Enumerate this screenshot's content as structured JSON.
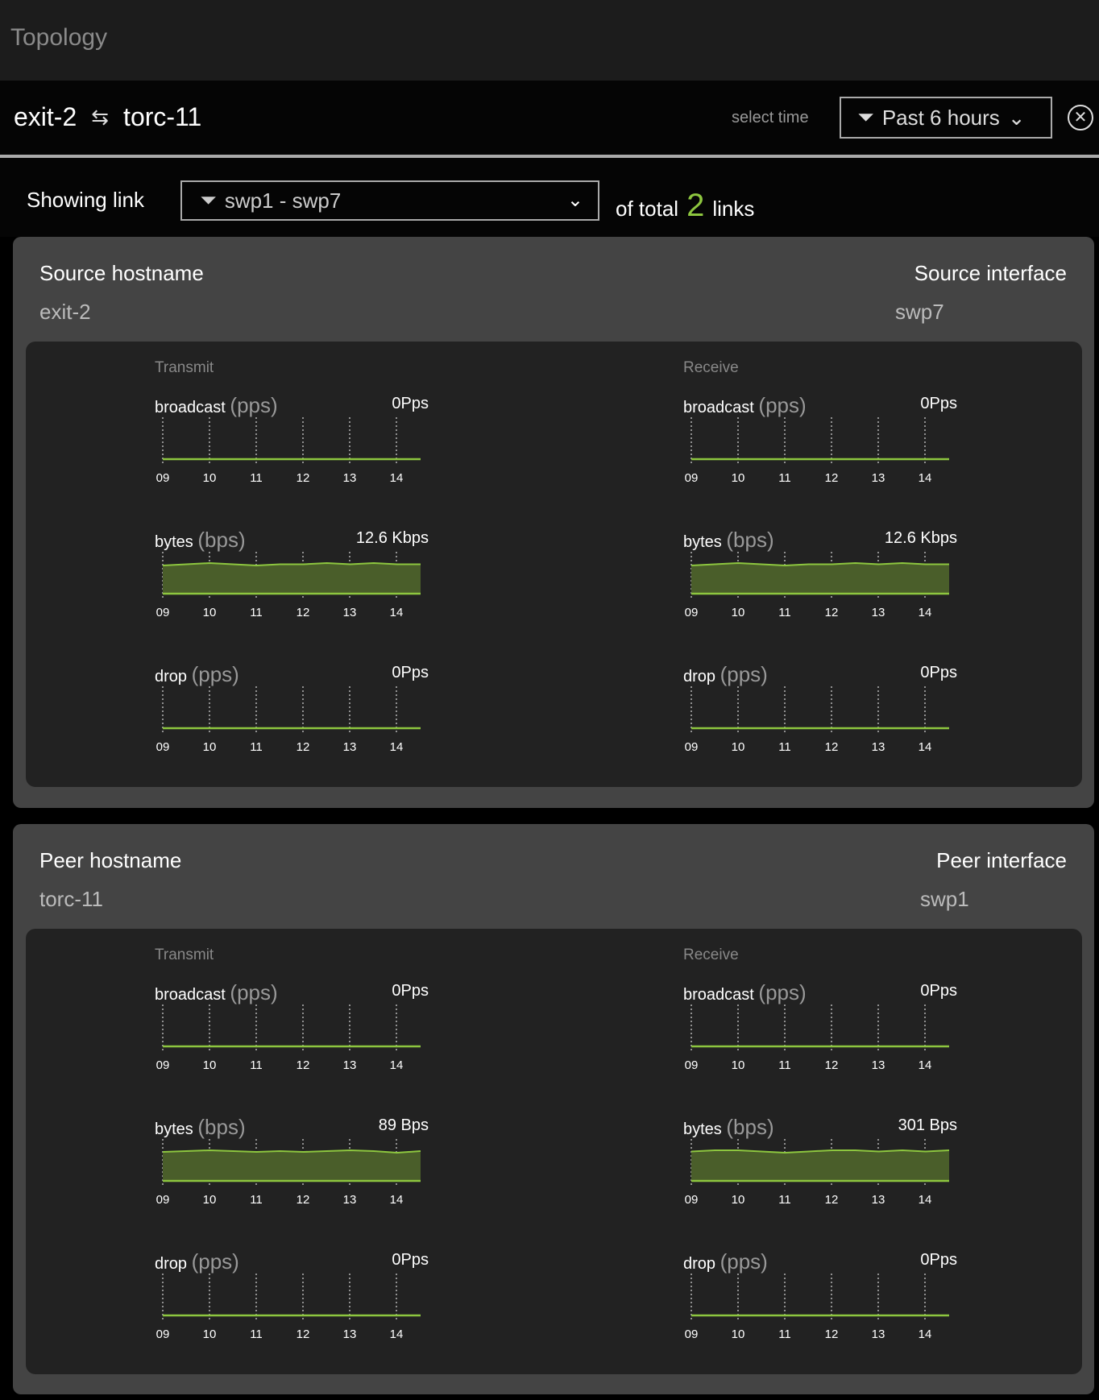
{
  "app_title": "Topology",
  "header": {
    "source": "exit-2",
    "arrow_icon": "swap-arrows-icon",
    "peer": "torc-11",
    "select_time_label": "select time",
    "time_range": "Past 6 hours"
  },
  "link": {
    "label": "Showing link",
    "selected": "swp1 - swp7",
    "of_total_label": "of total",
    "total": "2",
    "links_label": "links"
  },
  "accent_color": "#8dc63f",
  "cards": [
    {
      "host_label": "Source hostname",
      "host": "exit-2",
      "iface_label": "Source interface",
      "iface": "swp7",
      "columns": [
        {
          "title": "Transmit",
          "metrics": [
            {
              "name": "broadcast",
              "unit": "(pps)",
              "value": "0Pps",
              "type": "line",
              "values": [
                0,
                0,
                0,
                0,
                0,
                0,
                0,
                0,
                0,
                0,
                0,
                0
              ]
            },
            {
              "name": "bytes",
              "unit": "(bps)",
              "value": "12.6 Kbps",
              "type": "area",
              "values": [
                12.5,
                12.6,
                12.7,
                12.6,
                12.5,
                12.6,
                12.6,
                12.7,
                12.6,
                12.7,
                12.6,
                12.6
              ]
            },
            {
              "name": "drop",
              "unit": "(pps)",
              "value": "0Pps",
              "type": "line",
              "values": [
                0,
                0,
                0,
                0,
                0,
                0,
                0,
                0,
                0,
                0,
                0,
                0
              ]
            }
          ]
        },
        {
          "title": "Receive",
          "metrics": [
            {
              "name": "broadcast",
              "unit": "(pps)",
              "value": "0Pps",
              "type": "line",
              "values": [
                0,
                0,
                0,
                0,
                0,
                0,
                0,
                0,
                0,
                0,
                0,
                0
              ]
            },
            {
              "name": "bytes",
              "unit": "(bps)",
              "value": "12.6 Kbps",
              "type": "area",
              "values": [
                12.5,
                12.6,
                12.7,
                12.6,
                12.5,
                12.6,
                12.6,
                12.7,
                12.6,
                12.7,
                12.6,
                12.6
              ]
            },
            {
              "name": "drop",
              "unit": "(pps)",
              "value": "0Pps",
              "type": "line",
              "values": [
                0,
                0,
                0,
                0,
                0,
                0,
                0,
                0,
                0,
                0,
                0,
                0
              ]
            }
          ]
        }
      ]
    },
    {
      "host_label": "Peer hostname",
      "host": "torc-11",
      "iface_label": "Peer interface",
      "iface": "swp1",
      "columns": [
        {
          "title": "Transmit",
          "metrics": [
            {
              "name": "broadcast",
              "unit": "(pps)",
              "value": "0Pps",
              "type": "line",
              "values": [
                0,
                0,
                0,
                0,
                0,
                0,
                0,
                0,
                0,
                0,
                0,
                0
              ]
            },
            {
              "name": "bytes",
              "unit": "(bps)",
              "value": "89 Bps",
              "type": "area",
              "values": [
                88,
                89,
                90,
                89,
                88,
                89,
                88,
                89,
                90,
                89,
                87,
                89
              ]
            },
            {
              "name": "drop",
              "unit": "(pps)",
              "value": "0Pps",
              "type": "line",
              "values": [
                0,
                0,
                0,
                0,
                0,
                0,
                0,
                0,
                0,
                0,
                0,
                0
              ]
            }
          ]
        },
        {
          "title": "Receive",
          "metrics": [
            {
              "name": "broadcast",
              "unit": "(pps)",
              "value": "0Pps",
              "type": "line",
              "values": [
                0,
                0,
                0,
                0,
                0,
                0,
                0,
                0,
                0,
                0,
                0,
                0
              ]
            },
            {
              "name": "bytes",
              "unit": "(bps)",
              "value": "301 Bps",
              "type": "area",
              "values": [
                300,
                301,
                301,
                300,
                299,
                300,
                301,
                301,
                300,
                301,
                300,
                301
              ]
            },
            {
              "name": "drop",
              "unit": "(pps)",
              "value": "0Pps",
              "type": "line",
              "values": [
                0,
                0,
                0,
                0,
                0,
                0,
                0,
                0,
                0,
                0,
                0,
                0
              ]
            }
          ]
        }
      ]
    }
  ],
  "x_ticks": [
    "09",
    "10",
    "11",
    "12",
    "13",
    "14"
  ]
}
